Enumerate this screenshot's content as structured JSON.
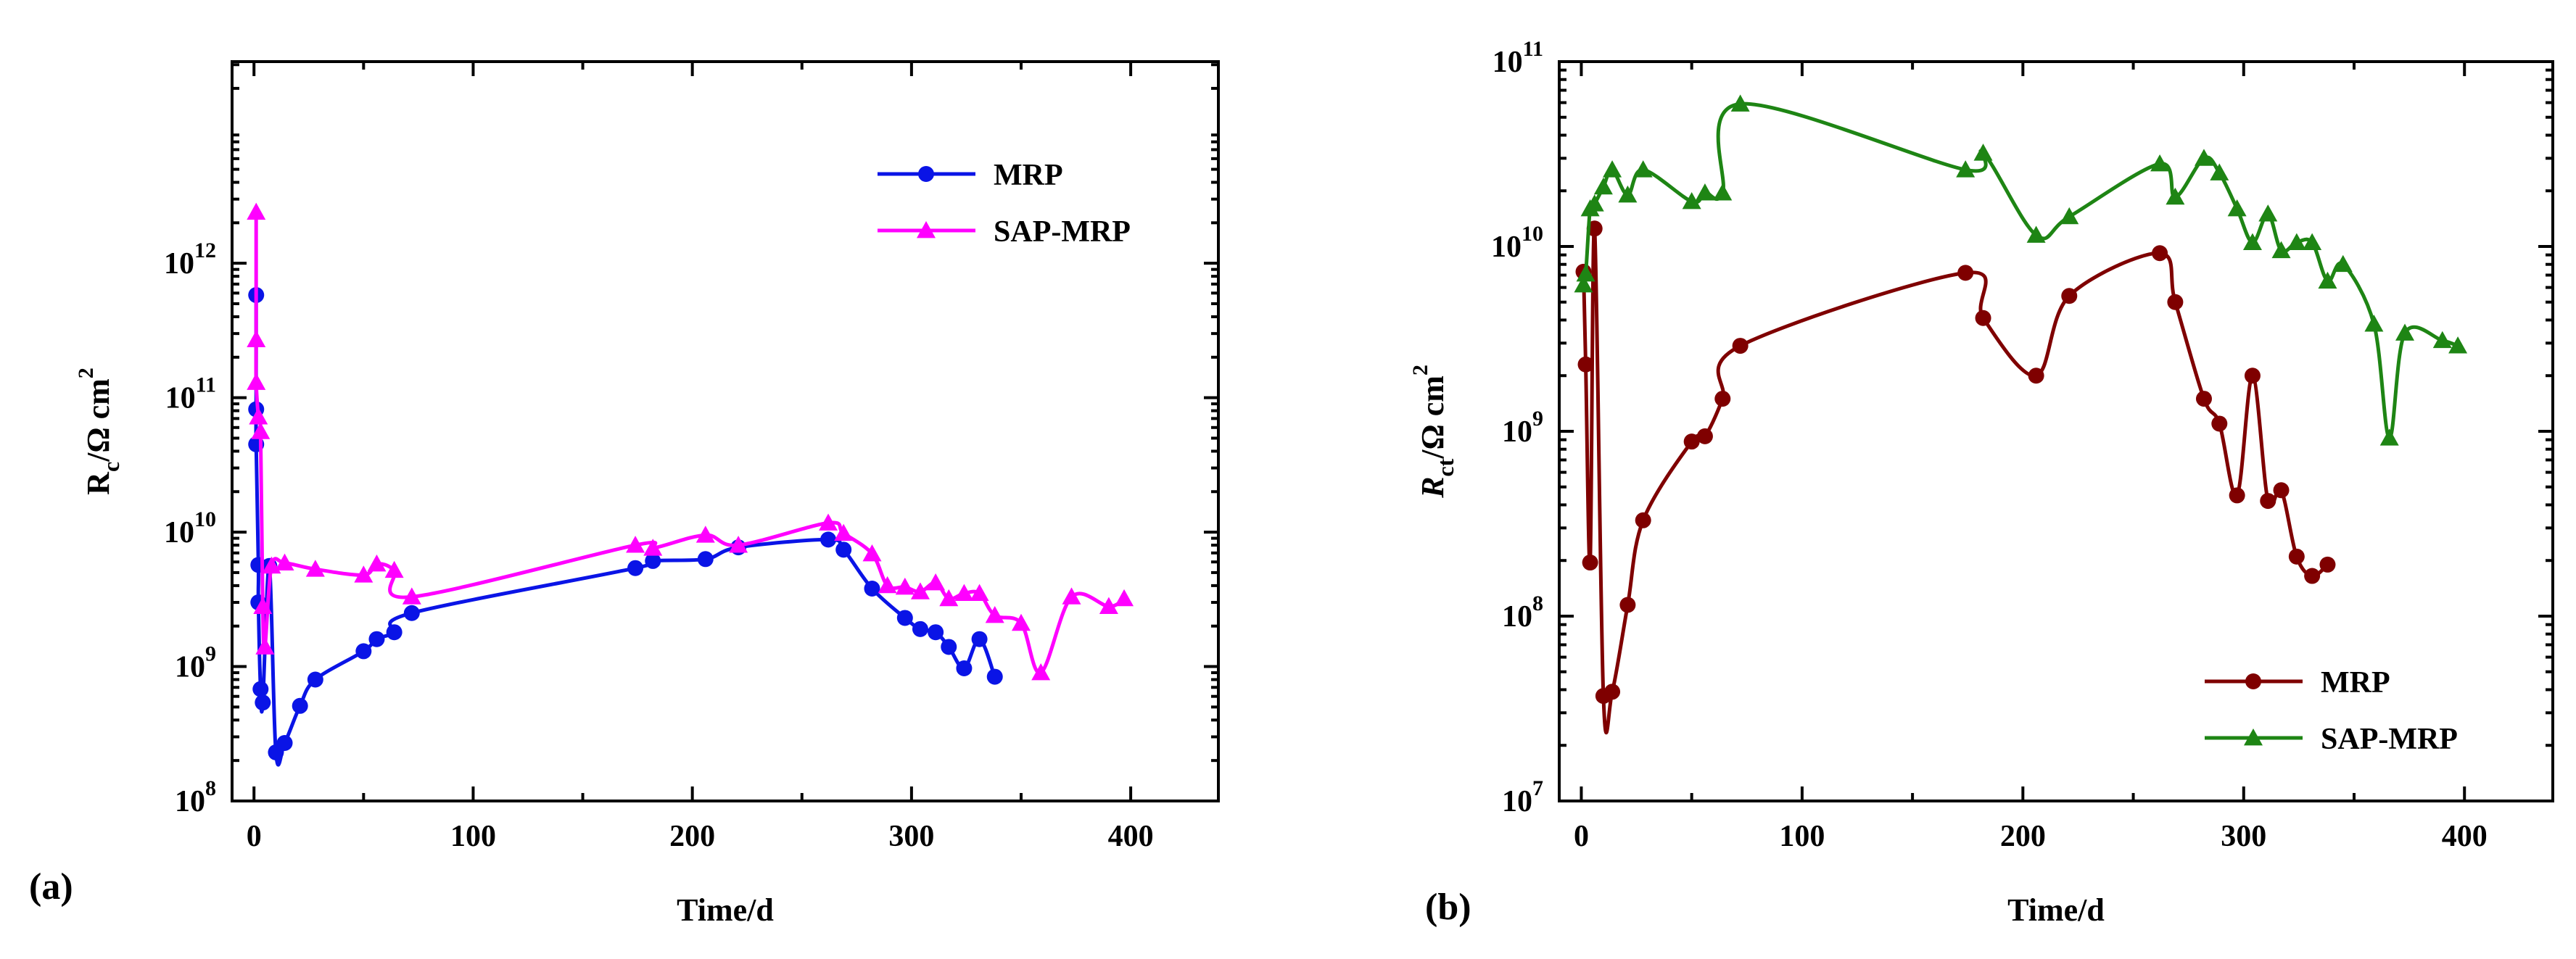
{
  "chart_data": [
    {
      "type": "line",
      "panel_label": "(a)",
      "xlabel": "Time/d",
      "ylabel_main": "R",
      "ylabel_sub": "c",
      "ylabel_unit": "/Ω cm",
      "ylabel_sup": "2",
      "yscale": "log",
      "xlim": [
        -10,
        440
      ],
      "ylim_exp": [
        8,
        13.5
      ],
      "xticks": [
        0,
        100,
        200,
        300,
        400
      ],
      "xtick_labels": [
        "0",
        "100",
        "200",
        "300",
        "400"
      ],
      "yticks_exp": [
        8,
        9,
        10,
        11,
        12
      ],
      "ytick_labels": [
        {
          "base": "10",
          "exp": "8"
        },
        {
          "base": "10",
          "exp": "9"
        },
        {
          "base": "10",
          "exp": "10"
        },
        {
          "base": "10",
          "exp": "11"
        },
        {
          "base": "10",
          "exp": "12"
        }
      ],
      "legend_position": "top-right",
      "series": [
        {
          "name": "MRP",
          "color": "#0a14e6",
          "marker": "circle",
          "x": [
            1,
            1,
            1,
            2,
            2,
            3,
            4,
            7,
            10,
            14,
            21,
            28,
            50,
            56,
            64,
            72,
            174,
            182,
            206,
            221,
            262,
            269,
            282,
            297,
            304,
            311,
            317,
            324,
            331,
            338
          ],
          "y": [
            580000000000.0,
            82000000000.0,
            45000000000.0,
            5700000000.0,
            3000000000.0,
            680000000.0,
            540000000.0,
            5600000000.0,
            230000000.0,
            270000000.0,
            510000000.0,
            800000000.0,
            1300000000.0,
            1600000000.0,
            1800000000.0,
            2500000000.0,
            5400000000.0,
            6100000000.0,
            6300000000.0,
            7700000000.0,
            8800000000.0,
            7400000000.0,
            3800000000.0,
            2300000000.0,
            1900000000.0,
            1800000000.0,
            1400000000.0,
            970000000.0,
            1600000000.0,
            840000000.0
          ]
        },
        {
          "name": "SAP-MRP",
          "color": "#ff00ff",
          "marker": "triangle",
          "x": [
            1,
            1,
            1,
            2,
            3,
            4,
            5,
            8,
            14,
            28,
            50,
            56,
            64,
            72,
            174,
            182,
            206,
            221,
            262,
            269,
            282,
            289,
            297,
            304,
            311,
            317,
            324,
            331,
            338,
            350,
            359,
            373,
            390,
            397
          ],
          "y": [
            2400000000000.0,
            270000000000.0,
            130000000000.0,
            72000000000.0,
            56000000000.0,
            2800000000.0,
            1400000000.0,
            5600000000.0,
            5900000000.0,
            5300000000.0,
            4800000000.0,
            5800000000.0,
            5200000000.0,
            3300000000.0,
            8000000000.0,
            7600000000.0,
            9500000000.0,
            8000000000.0,
            11700000000.0,
            9800000000.0,
            6900000000.0,
            4000000000.0,
            3900000000.0,
            3600000000.0,
            4200000000.0,
            3200000000.0,
            3500000000.0,
            3500000000.0,
            2400000000.0,
            2100000000.0,
            900000000.0,
            3300000000.0,
            2800000000.0,
            3200000000.0
          ]
        }
      ]
    },
    {
      "type": "line",
      "panel_label": "(b)",
      "xlabel": "Time/d",
      "ylabel_main": "R",
      "ylabel_sub": "ct",
      "ylabel_unit": "/Ω cm",
      "ylabel_sup": "2",
      "yscale": "log",
      "xlim": [
        -10,
        440
      ],
      "ylim_exp": [
        7,
        11
      ],
      "xticks": [
        0,
        100,
        200,
        300,
        400
      ],
      "xtick_labels": [
        "0",
        "100",
        "200",
        "300",
        "400"
      ],
      "yticks_exp": [
        7,
        8,
        9,
        10,
        11
      ],
      "ytick_labels": [
        {
          "base": "10",
          "exp": "7"
        },
        {
          "base": "10",
          "exp": "8"
        },
        {
          "base": "10",
          "exp": "9"
        },
        {
          "base": "10",
          "exp": "10"
        },
        {
          "base": "10",
          "exp": "11"
        }
      ],
      "legend_position": "bottom-right",
      "series": [
        {
          "name": "MRP",
          "color": "#7f0000",
          "marker": "circle",
          "x": [
            1,
            2,
            4,
            6,
            10,
            14,
            21,
            28,
            50,
            56,
            64,
            72,
            174,
            182,
            206,
            221,
            262,
            269,
            282,
            289,
            297,
            304,
            311,
            317,
            324,
            331,
            338
          ],
          "y": [
            7300000000.0,
            2300000000.0,
            195000000.0,
            12500000000.0,
            37000000.0,
            39000000.0,
            115000000.0,
            330000000.0,
            880000000.0,
            940000000.0,
            1500000000.0,
            2900000000.0,
            7200000000.0,
            4100000000.0,
            2000000000.0,
            5400000000.0,
            9200000000.0,
            5000000000.0,
            1500000000.0,
            1100000000.0,
            450000000.0,
            2000000000.0,
            420000000.0,
            480000000.0,
            210000000.0,
            165000000.0,
            190000000.0
          ]
        },
        {
          "name": "SAP-MRP",
          "color": "#1e8514",
          "marker": "triangle",
          "x": [
            1,
            2,
            4,
            6,
            10,
            14,
            21,
            28,
            50,
            56,
            64,
            72,
            174,
            182,
            206,
            221,
            262,
            269,
            282,
            289,
            297,
            304,
            311,
            317,
            324,
            331,
            338,
            345,
            359,
            366,
            373,
            390,
            397
          ],
          "y": [
            6200000000.0,
            7100000000.0,
            16000000000.0,
            17000000000.0,
            21000000000.0,
            26000000000.0,
            19000000000.0,
            26000000000.0,
            17500000000.0,
            19500000000.0,
            19500000000.0,
            59000000000.0,
            26000000000.0,
            32000000000.0,
            11500000000.0,
            14500000000.0,
            28000000000.0,
            18500000000.0,
            30000000000.0,
            25000000000.0,
            16000000000.0,
            10500000000.0,
            15000000000.0,
            9500000000.0,
            10500000000.0,
            10500000000.0,
            6500000000.0,
            8000000000.0,
            3800000000.0,
            920000000.0,
            3400000000.0,
            3100000000.0,
            2900000000.0
          ]
        }
      ]
    }
  ]
}
